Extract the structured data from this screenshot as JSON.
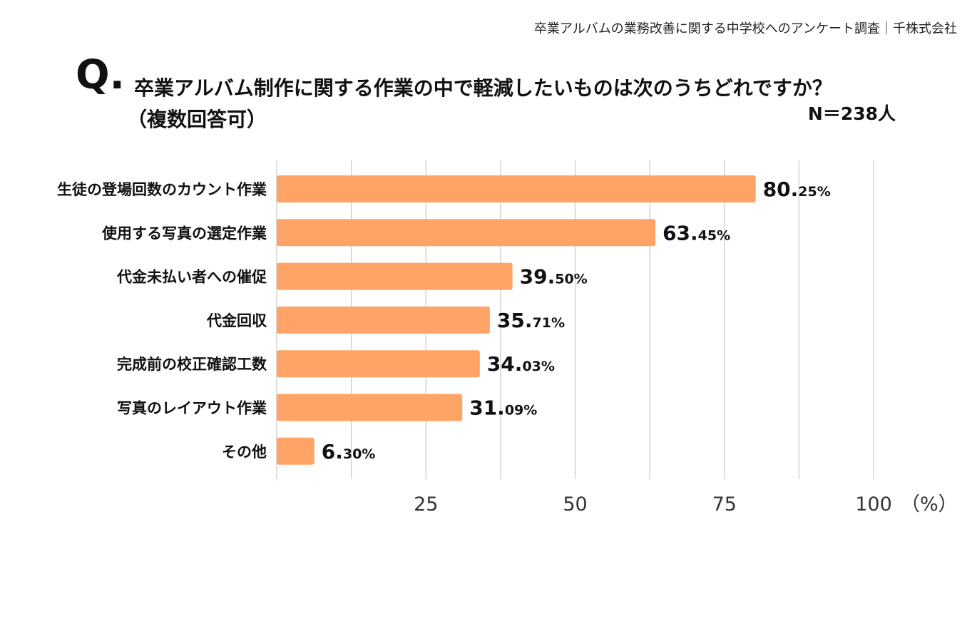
{
  "source_note": "卒業アルバムの業務改善に関する中学校へのアンケート調査｜千株式会社",
  "question": {
    "mark": "Q.",
    "text": "卒業アルバム制作に関する作業の中で軽減したいものは次のうちどれですか？",
    "sub": "（複数回答可）",
    "n": "N＝238人"
  },
  "chart_data": {
    "type": "bar",
    "orientation": "horizontal",
    "title": "卒業アルバム制作に関する作業の中で軽減したいものは次のうちどれですか？（複数回答可）",
    "categories": [
      "生徒の登場回数のカウント作業",
      "使用する写真の選定作業",
      "代金未払い者への催促",
      "代金回収",
      "完成前の校正確認工数",
      "写真のレイアウト作業",
      "その他"
    ],
    "values": [
      80.25,
      63.45,
      39.5,
      35.71,
      34.03,
      31.09,
      6.3
    ],
    "value_labels": [
      {
        "int": "80.",
        "dec": "25%"
      },
      {
        "int": "63.",
        "dec": "45%"
      },
      {
        "int": "39.",
        "dec": "50%"
      },
      {
        "int": "35.",
        "dec": "71%"
      },
      {
        "int": "34.",
        "dec": "03%"
      },
      {
        "int": "31.",
        "dec": "09%"
      },
      {
        "int": "6.",
        "dec": "30%"
      }
    ],
    "xlim": [
      0,
      100
    ],
    "xticks": [
      25,
      50,
      75,
      100
    ],
    "xtick_labels": [
      "25",
      "50",
      "75",
      "100"
    ],
    "unit_label": "（%）",
    "grid": true,
    "bar_color": "#ffa366",
    "grid_color": "#cccccc"
  }
}
